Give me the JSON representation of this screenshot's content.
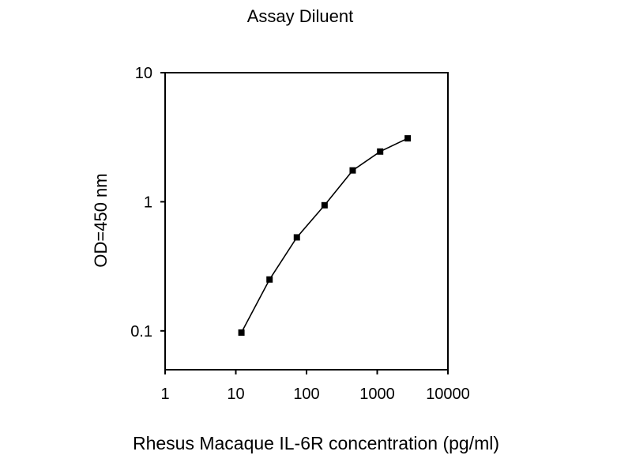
{
  "chart_data": {
    "type": "line",
    "title": "Assay Diluent",
    "xlabel": "Rhesus Macaque IL-6R concentration (pg/ml)",
    "ylabel": "OD=450 nm",
    "xscale": "log",
    "yscale": "log",
    "xlim": [
      1,
      10000
    ],
    "ylim": [
      0.05,
      10
    ],
    "xticks": [
      1,
      10,
      100,
      1000,
      10000
    ],
    "xtick_labels": [
      "1",
      "10",
      "100",
      "1000",
      "10000"
    ],
    "yticks": [
      0.1,
      1,
      10
    ],
    "ytick_labels": [
      "0.1",
      "1",
      "10"
    ],
    "grid": false,
    "legend": "none",
    "marker": "square",
    "color": "#000000",
    "series": [
      {
        "x": [
          12,
          30,
          73,
          180,
          450,
          1100,
          2700
        ],
        "y": [
          0.097,
          0.25,
          0.53,
          0.94,
          1.75,
          2.45,
          3.1
        ]
      }
    ]
  }
}
